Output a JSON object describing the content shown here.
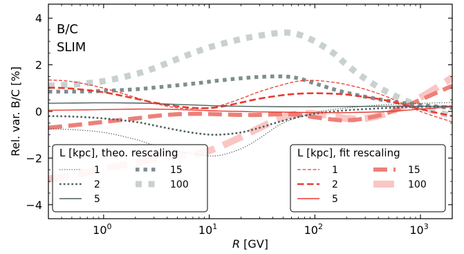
{
  "chart_data": {
    "type": "line",
    "xlabel_italic": "R",
    "xlabel_rest": " [GV]",
    "ylabel": "Rel. var. B/C [%]",
    "xscale": "log",
    "xlim": [
      0.3,
      2000
    ],
    "ylim": [
      -4.6,
      4.6
    ],
    "xticks": [
      {
        "value": 1,
        "base": "10",
        "exp": "0"
      },
      {
        "value": 10,
        "base": "10",
        "exp": "1"
      },
      {
        "value": 100,
        "base": "10",
        "exp": "2"
      },
      {
        "value": 1000,
        "base": "10",
        "exp": "3"
      }
    ],
    "yticks": [
      {
        "value": -4,
        "label": "−4"
      },
      {
        "value": -2,
        "label": "−2"
      },
      {
        "value": 0,
        "label": "0"
      },
      {
        "value": 2,
        "label": "2"
      },
      {
        "value": 4,
        "label": "4"
      }
    ],
    "annotations": [
      "B/C",
      "SLIM"
    ],
    "grid": false,
    "legends": [
      {
        "title": "L [kpc], theo. rescaling",
        "placement": "lower-left",
        "entries": [
          "1",
          "2",
          "5",
          "15",
          "100"
        ]
      },
      {
        "title": "L [kpc], fit rescaling",
        "placement": "lower-right",
        "entries": [
          "1",
          "2",
          "5",
          "15",
          "100"
        ]
      }
    ],
    "series": [
      {
        "name": "1",
        "group": "theo",
        "color": "#4f5f5f",
        "style": "dotted-thin",
        "x": [
          0.3,
          0.5,
          1,
          2,
          3,
          5,
          8,
          12,
          20,
          30,
          50,
          100,
          200,
          500,
          1000,
          2000
        ],
        "y": [
          -0.75,
          -0.78,
          -0.9,
          -1.2,
          -1.45,
          -1.7,
          -1.85,
          -1.9,
          -1.6,
          -1.15,
          -0.5,
          -0.05,
          0.15,
          0.3,
          0.35,
          0.38
        ]
      },
      {
        "name": "2",
        "group": "theo",
        "color": "#4f5f5f",
        "style": "dotted-medium",
        "x": [
          0.3,
          0.5,
          1,
          2,
          3,
          5,
          8,
          12,
          20,
          30,
          50,
          100,
          200,
          500,
          1000,
          2000
        ],
        "y": [
          -0.2,
          -0.22,
          -0.3,
          -0.45,
          -0.6,
          -0.8,
          -0.95,
          -1.0,
          -0.9,
          -0.7,
          -0.4,
          -0.1,
          0.05,
          0.15,
          0.2,
          0.22
        ]
      },
      {
        "name": "5",
        "group": "theo",
        "color": "#4f5f5f",
        "style": "solid",
        "x": [
          0.3,
          0.5,
          1,
          2,
          3,
          5,
          8,
          12,
          20,
          30,
          50,
          100,
          200,
          500,
          1000,
          2000
        ],
        "y": [
          0.35,
          0.36,
          0.37,
          0.36,
          0.34,
          0.3,
          0.27,
          0.24,
          0.22,
          0.21,
          0.2,
          0.2,
          0.21,
          0.22,
          0.22,
          0.22
        ]
      },
      {
        "name": "15",
        "group": "theo",
        "color": "#7d8e8e",
        "style": "dotted-thick",
        "x": [
          0.3,
          0.5,
          1,
          2,
          3,
          5,
          8,
          12,
          20,
          30,
          50,
          70,
          100,
          200,
          500,
          1000,
          2000
        ],
        "y": [
          0.85,
          0.85,
          0.88,
          0.95,
          1.02,
          1.12,
          1.22,
          1.32,
          1.42,
          1.48,
          1.5,
          1.42,
          1.2,
          0.8,
          0.45,
          0.28,
          0.15
        ]
      },
      {
        "name": "100",
        "group": "theo",
        "color": "#c9d0d0",
        "style": "dotted-xthick",
        "x": [
          0.3,
          0.5,
          1,
          2,
          3,
          5,
          8,
          12,
          20,
          30,
          50,
          70,
          100,
          150,
          200,
          300,
          500,
          1000,
          2000
        ],
        "y": [
          1.1,
          1.15,
          1.3,
          1.6,
          1.85,
          2.25,
          2.6,
          2.85,
          3.1,
          3.25,
          3.38,
          3.3,
          3.0,
          2.5,
          2.0,
          1.4,
          0.8,
          0.2,
          -0.2
        ]
      },
      {
        "name": "1",
        "group": "fit",
        "color": "#e83a30",
        "style": "dashed-thin",
        "x": [
          0.3,
          0.5,
          1,
          2,
          3,
          5,
          8,
          12,
          20,
          30,
          50,
          70,
          100,
          150,
          200,
          300,
          500,
          1000,
          2000
        ],
        "y": [
          1.35,
          1.28,
          1.0,
          0.6,
          0.35,
          0.15,
          0.12,
          0.22,
          0.55,
          0.85,
          1.15,
          1.3,
          1.33,
          1.25,
          1.15,
          0.95,
          0.6,
          0.0,
          -0.45
        ]
      },
      {
        "name": "2",
        "group": "fit",
        "color": "#e83a30",
        "style": "dashed-medium",
        "x": [
          0.3,
          0.5,
          1,
          2,
          3,
          5,
          8,
          12,
          20,
          30,
          50,
          70,
          100,
          150,
          200,
          300,
          500,
          1000,
          2000
        ],
        "y": [
          1.02,
          0.98,
          0.82,
          0.55,
          0.38,
          0.22,
          0.14,
          0.18,
          0.38,
          0.55,
          0.7,
          0.76,
          0.78,
          0.76,
          0.72,
          0.62,
          0.45,
          0.1,
          -0.2
        ]
      },
      {
        "name": "5",
        "group": "fit",
        "color": "#e83a30",
        "style": "solid",
        "x": [
          0.3,
          0.5,
          1,
          2,
          3,
          5,
          8,
          12,
          20,
          30,
          50,
          100,
          200,
          500,
          1000,
          2000
        ],
        "y": [
          0.05,
          0.06,
          0.08,
          0.1,
          0.1,
          0.08,
          0.05,
          0.02,
          0.0,
          -0.02,
          -0.03,
          -0.05,
          -0.05,
          0.0,
          0.1,
          0.2
        ]
      },
      {
        "name": "15",
        "group": "fit",
        "color": "#ee7f79",
        "style": "dashed-thick",
        "x": [
          0.3,
          0.5,
          1,
          2,
          3,
          5,
          8,
          12,
          20,
          30,
          50,
          70,
          100,
          150,
          200,
          300,
          500,
          1000,
          2000
        ],
        "y": [
          -0.7,
          -0.6,
          -0.45,
          -0.3,
          -0.2,
          -0.12,
          -0.1,
          -0.12,
          -0.15,
          -0.15,
          -0.12,
          -0.15,
          -0.25,
          -0.35,
          -0.38,
          -0.3,
          -0.05,
          0.5,
          1.1
        ]
      },
      {
        "name": "100",
        "group": "fit",
        "color": "#fac6c3",
        "style": "dashed-xthick",
        "x": [
          0.3,
          0.5,
          1,
          2,
          3,
          5,
          8,
          12,
          20,
          30,
          50,
          70,
          100,
          150,
          200,
          300,
          500,
          1000,
          2000
        ],
        "y": [
          -2.9,
          -2.75,
          -2.45,
          -2.2,
          -2.05,
          -1.9,
          -1.8,
          -1.55,
          -1.1,
          -0.7,
          -0.25,
          -0.1,
          -0.1,
          -0.2,
          -0.3,
          -0.3,
          -0.05,
          0.6,
          1.45
        ]
      }
    ]
  }
}
